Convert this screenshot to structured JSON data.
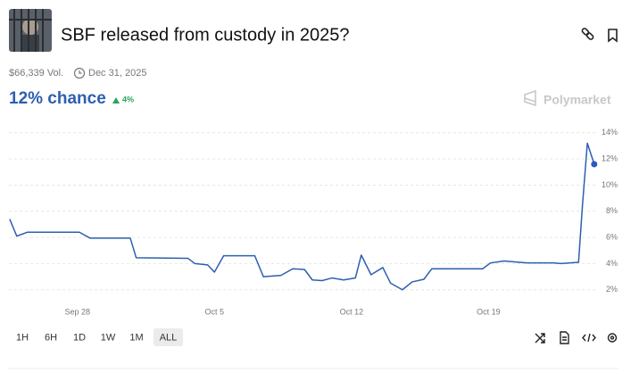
{
  "header": {
    "title": "SBF released from custody in 2025?",
    "volume": "$66,339 Vol.",
    "end_date": "Dec 31, 2025",
    "chance": "12% chance",
    "change": "4%",
    "brand": "Polymarket"
  },
  "chart_data": {
    "type": "line",
    "x": [
      -3.46,
      -3.1,
      -2.55,
      0.1,
      0.64,
      2.7,
      3.0,
      5.65,
      6.0,
      6.65,
      7.0,
      7.47,
      9.06,
      9.5,
      10.4,
      11.0,
      11.6,
      12.0,
      12.5,
      13.0,
      13.6,
      14.2,
      14.5,
      15.0,
      15.6,
      16.0,
      16.6,
      17.1,
      17.7,
      18.1,
      20.7,
      21.1,
      21.8,
      22.95,
      24.3,
      24.7,
      25.6,
      25.8,
      26.05,
      26.4
    ],
    "series": [
      {
        "name": "Yes",
        "color": "#2d5fae",
        "values": [
          7.4,
          6.1,
          6.4,
          6.4,
          5.95,
          5.95,
          4.45,
          4.4,
          4.0,
          3.9,
          3.35,
          4.6,
          4.6,
          3.0,
          3.1,
          3.6,
          3.55,
          2.75,
          2.7,
          2.9,
          2.75,
          2.9,
          4.65,
          3.15,
          3.7,
          2.5,
          2.0,
          2.6,
          2.8,
          3.6,
          3.6,
          4.05,
          4.2,
          4.05,
          4.05,
          4.0,
          4.1,
          8.45,
          13.2,
          11.6
        ]
      }
    ],
    "xlim": [
      -3.5,
      26.5
    ],
    "xticks": [
      {
        "value": 0,
        "label": "Sep 28"
      },
      {
        "value": 7,
        "label": "Oct 5"
      },
      {
        "value": 14,
        "label": "Oct 12"
      },
      {
        "value": 21,
        "label": "Oct 19"
      }
    ],
    "ylim": [
      1.3,
      14.6
    ],
    "yticks": [
      {
        "value": 2,
        "label": "2%"
      },
      {
        "value": 4,
        "label": "4%"
      },
      {
        "value": 6,
        "label": "6%"
      },
      {
        "value": 8,
        "label": "8%"
      },
      {
        "value": 10,
        "label": "10%"
      },
      {
        "value": 12,
        "label": "12%"
      },
      {
        "value": 14,
        "label": "14%"
      }
    ],
    "grid": true
  },
  "ranges": [
    "1H",
    "6H",
    "1D",
    "1W",
    "1M",
    "ALL"
  ],
  "selected_range": "ALL"
}
